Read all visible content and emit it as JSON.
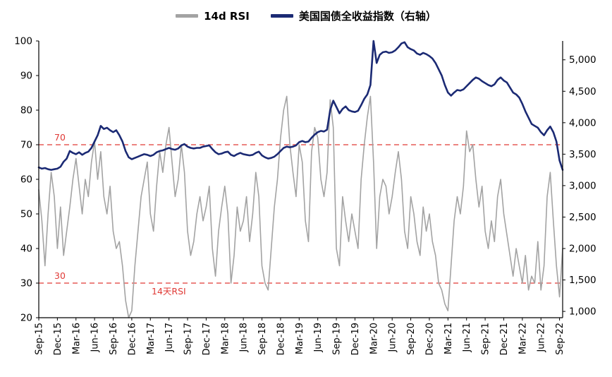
{
  "chart_data": {
    "type": "line",
    "title": "",
    "x_tick_labels": [
      "Sep-15",
      "Dec-15",
      "Mar-16",
      "Jun-16",
      "Sep-16",
      "Dec-16",
      "Mar-17",
      "Jun-17",
      "Sep-17",
      "Dec-17",
      "Mar-18",
      "Jun-18",
      "Sep-18",
      "Dec-18",
      "Mar-19",
      "Jun-19",
      "Sep-19",
      "Dec-19",
      "Mar-20",
      "Jun-20",
      "Sep-20",
      "Dec-20",
      "Mar-21",
      "Jun-21",
      "Sep-21",
      "Dec-21",
      "Mar-22",
      "Jun-22",
      "Sep-22"
    ],
    "points_per_tick": 6,
    "left_axis": {
      "min": 20,
      "max": 100,
      "ticks": [
        20,
        30,
        40,
        50,
        60,
        70,
        80,
        90,
        100
      ]
    },
    "right_axis": {
      "min": 900,
      "max": 5300,
      "ticks": [
        1000,
        1500,
        2000,
        2500,
        3000,
        3500,
        4000,
        4500,
        5000
      ],
      "tick_labels": [
        "1,000",
        "1,500",
        "2,000",
        "2,500",
        "3,000",
        "3,500",
        "4,000",
        "4,500",
        "5,000"
      ]
    },
    "series": [
      {
        "name": "14d RSI",
        "axis": "left",
        "color": "#a3a3a3",
        "width": 1.6,
        "values": [
          57,
          48,
          35,
          50,
          62,
          55,
          40,
          52,
          38,
          45,
          52,
          60,
          66,
          58,
          50,
          60,
          55,
          65,
          71,
          60,
          68,
          55,
          50,
          58,
          45,
          40,
          42,
          35,
          25,
          20,
          22,
          35,
          45,
          55,
          60,
          65,
          50,
          45,
          58,
          68,
          62,
          70,
          75,
          65,
          55,
          60,
          70,
          62,
          45,
          38,
          42,
          50,
          55,
          48,
          52,
          58,
          40,
          32,
          45,
          52,
          58,
          50,
          30,
          38,
          52,
          45,
          48,
          55,
          42,
          50,
          62,
          55,
          35,
          30,
          28,
          40,
          52,
          60,
          72,
          80,
          84,
          70,
          62,
          55,
          70,
          65,
          48,
          42,
          68,
          75,
          72,
          60,
          55,
          62,
          83,
          75,
          40,
          35,
          55,
          48,
          42,
          50,
          45,
          40,
          60,
          70,
          78,
          84,
          65,
          40,
          55,
          60,
          58,
          50,
          55,
          62,
          68,
          60,
          45,
          40,
          55,
          50,
          42,
          38,
          52,
          45,
          50,
          42,
          38,
          30,
          28,
          24,
          22,
          35,
          48,
          55,
          50,
          58,
          74,
          68,
          70,
          60,
          52,
          58,
          45,
          40,
          48,
          42,
          55,
          60,
          50,
          44,
          38,
          32,
          40,
          35,
          30,
          38,
          28,
          32,
          30,
          42,
          28,
          35,
          55,
          62,
          48,
          35,
          26,
          40
        ]
      },
      {
        "name": "美国国债全收益指数（右轴）",
        "axis": "right",
        "color": "#1b2a74",
        "width": 2.6,
        "values": [
          3290,
          3270,
          3280,
          3260,
          3250,
          3260,
          3270,
          3300,
          3380,
          3430,
          3550,
          3520,
          3500,
          3530,
          3490,
          3520,
          3540,
          3600,
          3700,
          3800,
          3950,
          3900,
          3920,
          3880,
          3850,
          3880,
          3800,
          3700,
          3550,
          3450,
          3420,
          3440,
          3460,
          3480,
          3500,
          3490,
          3470,
          3490,
          3530,
          3550,
          3560,
          3580,
          3600,
          3580,
          3570,
          3590,
          3640,
          3660,
          3620,
          3600,
          3590,
          3600,
          3600,
          3620,
          3630,
          3640,
          3580,
          3530,
          3500,
          3510,
          3530,
          3540,
          3490,
          3470,
          3500,
          3520,
          3500,
          3490,
          3480,
          3490,
          3520,
          3540,
          3480,
          3450,
          3430,
          3440,
          3460,
          3500,
          3550,
          3600,
          3620,
          3610,
          3620,
          3640,
          3690,
          3710,
          3690,
          3700,
          3760,
          3810,
          3850,
          3870,
          3860,
          3890,
          4200,
          4350,
          4250,
          4150,
          4220,
          4260,
          4200,
          4180,
          4170,
          4190,
          4280,
          4380,
          4450,
          4600,
          5300,
          4950,
          5080,
          5120,
          5130,
          5110,
          5120,
          5150,
          5200,
          5260,
          5280,
          5200,
          5170,
          5150,
          5100,
          5080,
          5110,
          5090,
          5060,
          5020,
          4950,
          4850,
          4750,
          4600,
          4480,
          4430,
          4480,
          4520,
          4510,
          4530,
          4580,
          4630,
          4680,
          4720,
          4700,
          4660,
          4630,
          4600,
          4580,
          4610,
          4680,
          4720,
          4670,
          4640,
          4560,
          4480,
          4450,
          4400,
          4300,
          4180,
          4080,
          3980,
          3950,
          3920,
          3850,
          3800,
          3880,
          3940,
          3850,
          3700,
          3400,
          3250
        ]
      }
    ],
    "reference_lines": [
      {
        "value": 70,
        "axis": "left",
        "label": "70",
        "color": "#e03a36"
      },
      {
        "value": 30,
        "axis": "left",
        "label": "30",
        "color": "#e03a36"
      }
    ],
    "annotation": {
      "text": "14天RSI",
      "color": "#e03a36"
    },
    "legend_position": "top-center",
    "grid": false
  }
}
